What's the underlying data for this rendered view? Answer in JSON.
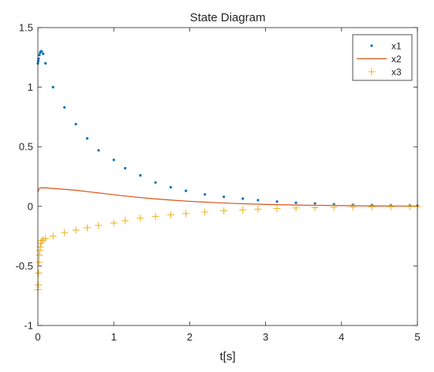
{
  "chart_data": {
    "type": "line",
    "title": "State Diagram",
    "xlabel": "t[s]",
    "ylabel": "",
    "xlim": [
      0,
      5
    ],
    "ylim": [
      -1,
      1.5
    ],
    "xticks": [
      0,
      1,
      2,
      3,
      4,
      5
    ],
    "yticks": [
      -1,
      -0.5,
      0,
      0.5,
      1,
      1.5
    ],
    "xtick_labels": [
      "0",
      "1",
      "2",
      "3",
      "4",
      "5"
    ],
    "ytick_labels": [
      "-1",
      "-0.5",
      "0",
      "0.5",
      "1",
      "1.5"
    ],
    "grid": false,
    "legend_position": "top-right",
    "series": [
      {
        "name": "x1",
        "style": "dots",
        "color": "#0072BD",
        "x": [
          0,
          0.005,
          0.01,
          0.02,
          0.03,
          0.04,
          0.05,
          0.07,
          0.1,
          0.2,
          0.35,
          0.5,
          0.65,
          0.8,
          1.0,
          1.15,
          1.35,
          1.55,
          1.75,
          1.95,
          2.2,
          2.45,
          2.7,
          2.9,
          3.15,
          3.4,
          3.65,
          3.9,
          4.15,
          4.4,
          4.65,
          4.9,
          5.0
        ],
        "y": [
          1.2,
          1.22,
          1.24,
          1.27,
          1.29,
          1.3,
          1.3,
          1.28,
          1.2,
          1.0,
          0.83,
          0.69,
          0.57,
          0.47,
          0.39,
          0.32,
          0.26,
          0.2,
          0.16,
          0.13,
          0.1,
          0.08,
          0.065,
          0.052,
          0.04,
          0.03,
          0.024,
          0.018,
          0.014,
          0.011,
          0.008,
          0.006,
          0.005
        ]
      },
      {
        "name": "x2",
        "style": "line",
        "color": "#D95319",
        "x": [
          0,
          0.01,
          0.02,
          0.03,
          0.05,
          0.08,
          0.1,
          0.2,
          0.3,
          0.4,
          0.5,
          0.7,
          0.9,
          1.1,
          1.3,
          1.5,
          1.7,
          2.0,
          2.3,
          2.6,
          3.0,
          3.5,
          4.0,
          4.5,
          5.0
        ],
        "y": [
          0.12,
          0.14,
          0.15,
          0.155,
          0.155,
          0.155,
          0.155,
          0.15,
          0.145,
          0.14,
          0.135,
          0.12,
          0.105,
          0.09,
          0.077,
          0.065,
          0.055,
          0.042,
          0.032,
          0.024,
          0.016,
          0.01,
          0.006,
          0.003,
          0.002
        ]
      },
      {
        "name": "x3",
        "style": "plus",
        "color": "#EDB120",
        "x": [
          0,
          0.005,
          0.01,
          0.015,
          0.02,
          0.025,
          0.03,
          0.04,
          0.05,
          0.07,
          0.1,
          0.2,
          0.35,
          0.5,
          0.65,
          0.8,
          1.0,
          1.15,
          1.35,
          1.55,
          1.75,
          1.95,
          2.2,
          2.45,
          2.7,
          2.9,
          3.15,
          3.4,
          3.65,
          3.9,
          4.15,
          4.4,
          4.65,
          4.9,
          5.0
        ],
        "y": [
          -0.7,
          -0.66,
          -0.56,
          -0.47,
          -0.41,
          -0.37,
          -0.34,
          -0.31,
          -0.29,
          -0.28,
          -0.27,
          -0.25,
          -0.22,
          -0.2,
          -0.18,
          -0.16,
          -0.14,
          -0.12,
          -0.1,
          -0.085,
          -0.072,
          -0.06,
          -0.048,
          -0.038,
          -0.03,
          -0.024,
          -0.018,
          -0.014,
          -0.011,
          -0.008,
          -0.006,
          -0.004,
          -0.003,
          -0.002,
          -0.002
        ]
      }
    ]
  }
}
